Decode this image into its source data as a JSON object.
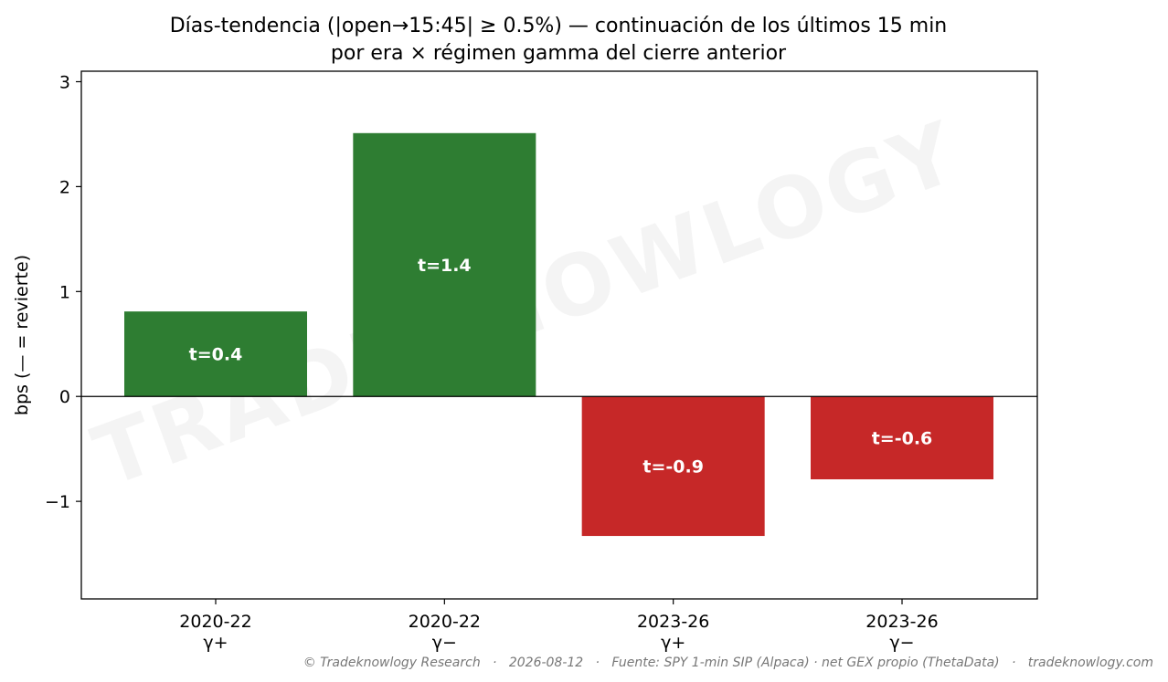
{
  "chart_data": {
    "type": "bar",
    "title": "Días-tendencia (|open→15:45| ≥ 0.5%) — continuación de los últimos 15 min",
    "subtitle": "por era × régimen gamma del cierre anterior",
    "xlabel": "",
    "ylabel": "bps (— = revierte)",
    "ylim": [
      -1.93,
      3.1
    ],
    "yticks": [
      {
        "value": -1,
        "label": "−1"
      },
      {
        "value": 0,
        "label": "0"
      },
      {
        "value": 1,
        "label": "1"
      },
      {
        "value": 2,
        "label": "2"
      },
      {
        "value": 3,
        "label": "3"
      }
    ],
    "categories": [
      {
        "era": "2020-22",
        "regime": "γ+"
      },
      {
        "era": "2020-22",
        "regime": "γ−"
      },
      {
        "era": "2023-26",
        "regime": "γ+"
      },
      {
        "era": "2023-26",
        "regime": "γ−"
      }
    ],
    "values": [
      0.81,
      2.51,
      -1.33,
      -0.79
    ],
    "bar_labels": [
      "t=0.4",
      "t=1.4",
      "t=-0.9",
      "t=-0.6"
    ],
    "colors": {
      "positive": "#2e7d32",
      "negative": "#c62828"
    },
    "grid": false,
    "legend": "none"
  },
  "watermark": "TRADEKNOWLOGY",
  "footer": "© Tradeknowlogy Research   ·   2026-08-12   ·   Fuente: SPY 1-min SIP (Alpaca) · net GEX propio (ThetaData)   ·   tradeknowlogy.com"
}
